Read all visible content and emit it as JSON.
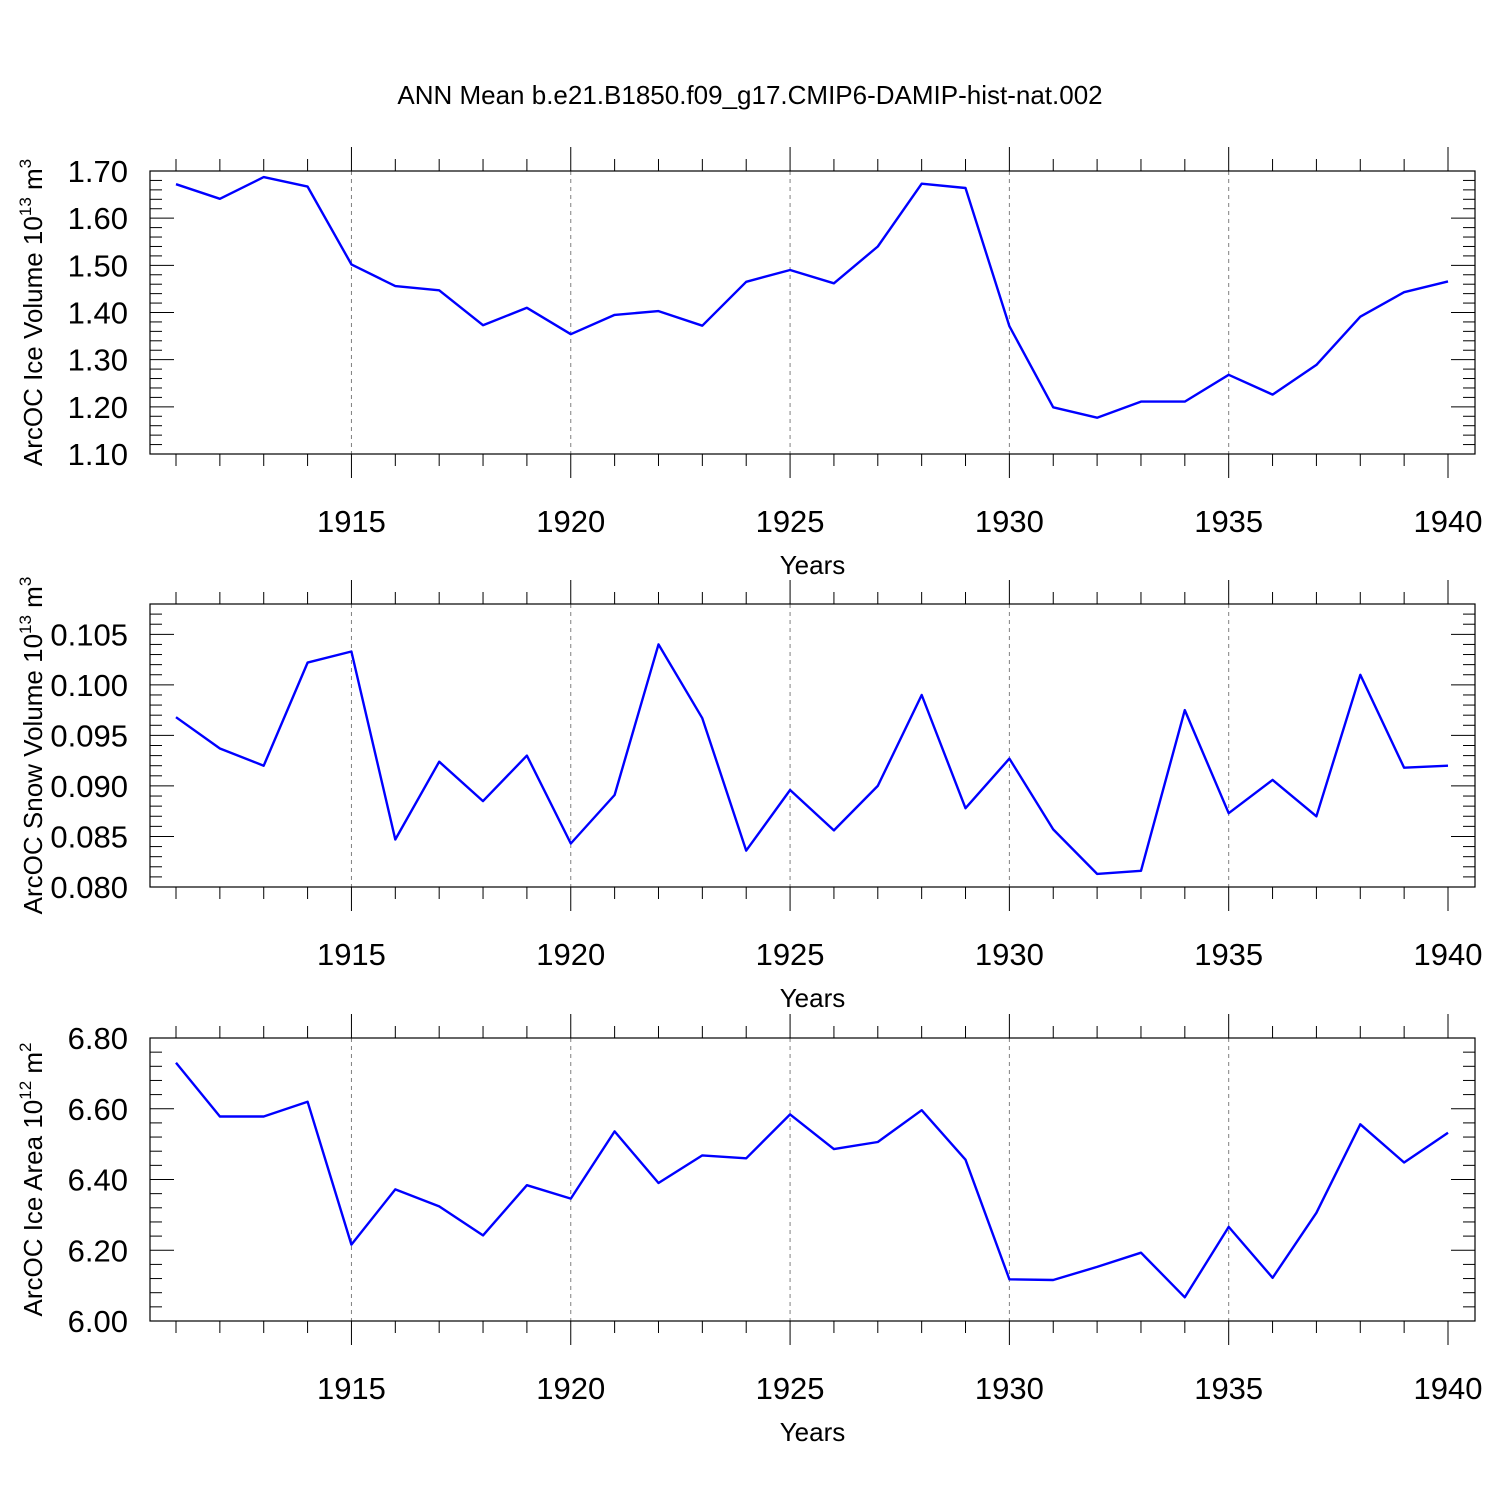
{
  "title": "ANN Mean b.e21.B1850.f09_g17.CMIP6-DAMIP-hist-nat.002",
  "colors": {
    "line": "#0000ff",
    "axis": "#000000",
    "grid": "#808080",
    "background": "#ffffff"
  },
  "chart_data": [
    {
      "type": "line",
      "title": "ANN Mean b.e21.B1850.f09_g17.CMIP6-DAMIP-hist-nat.002",
      "ylabel": {
        "prefix": "ArcOC Ice Volume 10",
        "exp": "13",
        "unit": " m",
        "unit_exp": "3"
      },
      "xlabel": "Years",
      "xlim": [
        1911,
        1940
      ],
      "ylim": [
        1.1,
        1.7
      ],
      "yticks": [
        "1.10",
        "1.20",
        "1.30",
        "1.40",
        "1.50",
        "1.60",
        "1.70"
      ],
      "xticks": [
        "1915",
        "1920",
        "1925",
        "1930",
        "1935",
        "1940"
      ],
      "grid": "vertical dashed at major x ticks",
      "series": [
        {
          "name": "ArcOC Ice Volume",
          "x": [
            1911,
            1912,
            1913,
            1914,
            1915,
            1916,
            1917,
            1918,
            1919,
            1920,
            1921,
            1922,
            1923,
            1924,
            1925,
            1926,
            1927,
            1928,
            1929,
            1930,
            1931,
            1932,
            1933,
            1934,
            1935,
            1936,
            1937,
            1938,
            1939,
            1940
          ],
          "values": [
            1.672,
            1.641,
            1.687,
            1.667,
            1.502,
            1.456,
            1.447,
            1.373,
            1.41,
            1.354,
            1.395,
            1.403,
            1.372,
            1.465,
            1.49,
            1.462,
            1.54,
            1.673,
            1.664,
            1.371,
            1.199,
            1.177,
            1.211,
            1.211,
            1.268,
            1.226,
            1.289,
            1.391,
            1.443,
            1.466
          ]
        }
      ]
    },
    {
      "type": "line",
      "ylabel": {
        "prefix": "ArcOC Snow Volume 10",
        "exp": "13",
        "unit": " m",
        "unit_exp": "3"
      },
      "xlabel": "Years",
      "xlim": [
        1911,
        1940
      ],
      "ylim": [
        0.08,
        0.108
      ],
      "yticks": [
        "0.080",
        "0.085",
        "0.090",
        "0.095",
        "0.100",
        "0.105"
      ],
      "xticks": [
        "1915",
        "1920",
        "1925",
        "1930",
        "1935",
        "1940"
      ],
      "grid": "vertical dashed at major x ticks",
      "series": [
        {
          "name": "ArcOC Snow Volume",
          "x": [
            1911,
            1912,
            1913,
            1914,
            1915,
            1916,
            1917,
            1918,
            1919,
            1920,
            1921,
            1922,
            1923,
            1924,
            1925,
            1926,
            1927,
            1928,
            1929,
            1930,
            1931,
            1932,
            1933,
            1934,
            1935,
            1936,
            1937,
            1938,
            1939,
            1940
          ],
          "values": [
            0.0968,
            0.0937,
            0.092,
            0.1022,
            0.1033,
            0.0847,
            0.0924,
            0.0885,
            0.093,
            0.0843,
            0.0891,
            0.104,
            0.0967,
            0.0836,
            0.0896,
            0.0856,
            0.09,
            0.099,
            0.0878,
            0.0927,
            0.0857,
            0.0813,
            0.0816,
            0.0975,
            0.0873,
            0.0906,
            0.087,
            0.101,
            0.0918,
            0.092
          ]
        }
      ]
    },
    {
      "type": "line",
      "ylabel": {
        "prefix": "ArcOC Ice Area 10",
        "exp": "12",
        "unit": " m",
        "unit_exp": "2"
      },
      "xlabel": "Years",
      "xlim": [
        1911,
        1940
      ],
      "ylim": [
        6.0,
        6.8
      ],
      "yticks": [
        "6.00",
        "6.20",
        "6.40",
        "6.60",
        "6.80"
      ],
      "xticks": [
        "1915",
        "1920",
        "1925",
        "1930",
        "1935",
        "1940"
      ],
      "grid": "vertical dashed at major x ticks",
      "series": [
        {
          "name": "ArcOC Ice Area",
          "x": [
            1911,
            1912,
            1913,
            1914,
            1915,
            1916,
            1917,
            1918,
            1919,
            1920,
            1921,
            1922,
            1923,
            1924,
            1925,
            1926,
            1927,
            1928,
            1929,
            1930,
            1931,
            1932,
            1933,
            1934,
            1935,
            1936,
            1937,
            1938,
            1939,
            1940
          ],
          "values": [
            6.73,
            6.578,
            6.578,
            6.62,
            6.216,
            6.372,
            6.324,
            6.242,
            6.384,
            6.346,
            6.536,
            6.39,
            6.468,
            6.46,
            6.584,
            6.486,
            6.506,
            6.596,
            6.456,
            6.118,
            6.116,
            6.153,
            6.193,
            6.067,
            6.266,
            6.122,
            6.306,
            6.556,
            6.448,
            6.532
          ]
        }
      ]
    }
  ]
}
